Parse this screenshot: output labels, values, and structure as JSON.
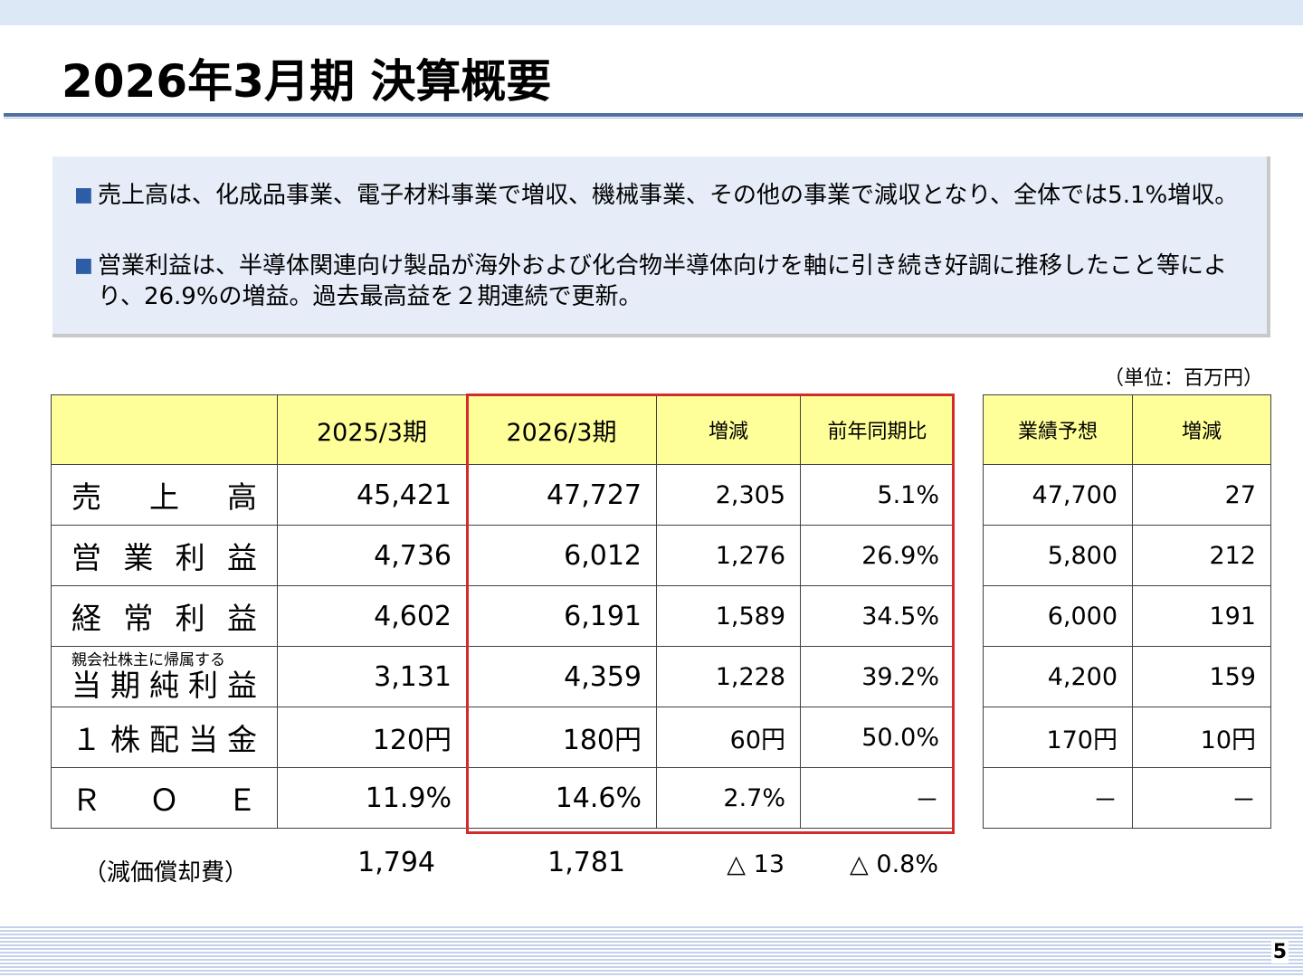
{
  "title": "2026年3月期 決算概要",
  "summary": [
    "売上高は、化成品事業、電子材料事業で増収、機械事業、その他の事業で減収となり、全体では5.1%増収。",
    "営業利益は、半導体関連向け製品が海外および化合物半導体向けを軸に引き続き好調に推移したこと等により、26.9%の増益。過去最高益を２期連続で更新。"
  ],
  "bullet_glyph": "■",
  "unit": "（単位：百万円）",
  "headers": {
    "prev": "2025/3期",
    "curr": "2026/3期",
    "change": "増減",
    "yoy": "前年同期比",
    "forecast": "業績予想",
    "forecast_change": "増減"
  },
  "rows": [
    {
      "label": "売上高",
      "prev": "45,421",
      "curr": "47,727",
      "change": "2,305",
      "yoy": "5.1%",
      "forecast": "47,700",
      "fchange": "27"
    },
    {
      "label": "営業利益",
      "prev": "4,736",
      "curr": "6,012",
      "change": "1,276",
      "yoy": "26.9%",
      "forecast": "5,800",
      "fchange": "212"
    },
    {
      "label": "経常利益",
      "prev": "4,602",
      "curr": "6,191",
      "change": "1,589",
      "yoy": "34.5%",
      "forecast": "6,000",
      "fchange": "191"
    },
    {
      "label_small": "親会社株主に帰属する",
      "label": "当期純利益",
      "prev": "3,131",
      "curr": "4,359",
      "change": "1,228",
      "yoy": "39.2%",
      "forecast": "4,200",
      "fchange": "159"
    },
    {
      "label": "１株配当金",
      "prev": "120円",
      "curr": "180円",
      "change": "60円",
      "yoy": "50.0%",
      "forecast": "170円",
      "fchange": "10円"
    },
    {
      "label": "ＲＯＥ",
      "prev": "11.9%",
      "curr": "14.6%",
      "change": "2.7%",
      "yoy": "－",
      "forecast": "－",
      "fchange": "－"
    }
  ],
  "depreciation": {
    "label": "（減価償却費）",
    "prev": "1,794",
    "curr": "1,781",
    "change": "△ 13",
    "yoy": "△ 0.8%"
  },
  "page_number": "5"
}
